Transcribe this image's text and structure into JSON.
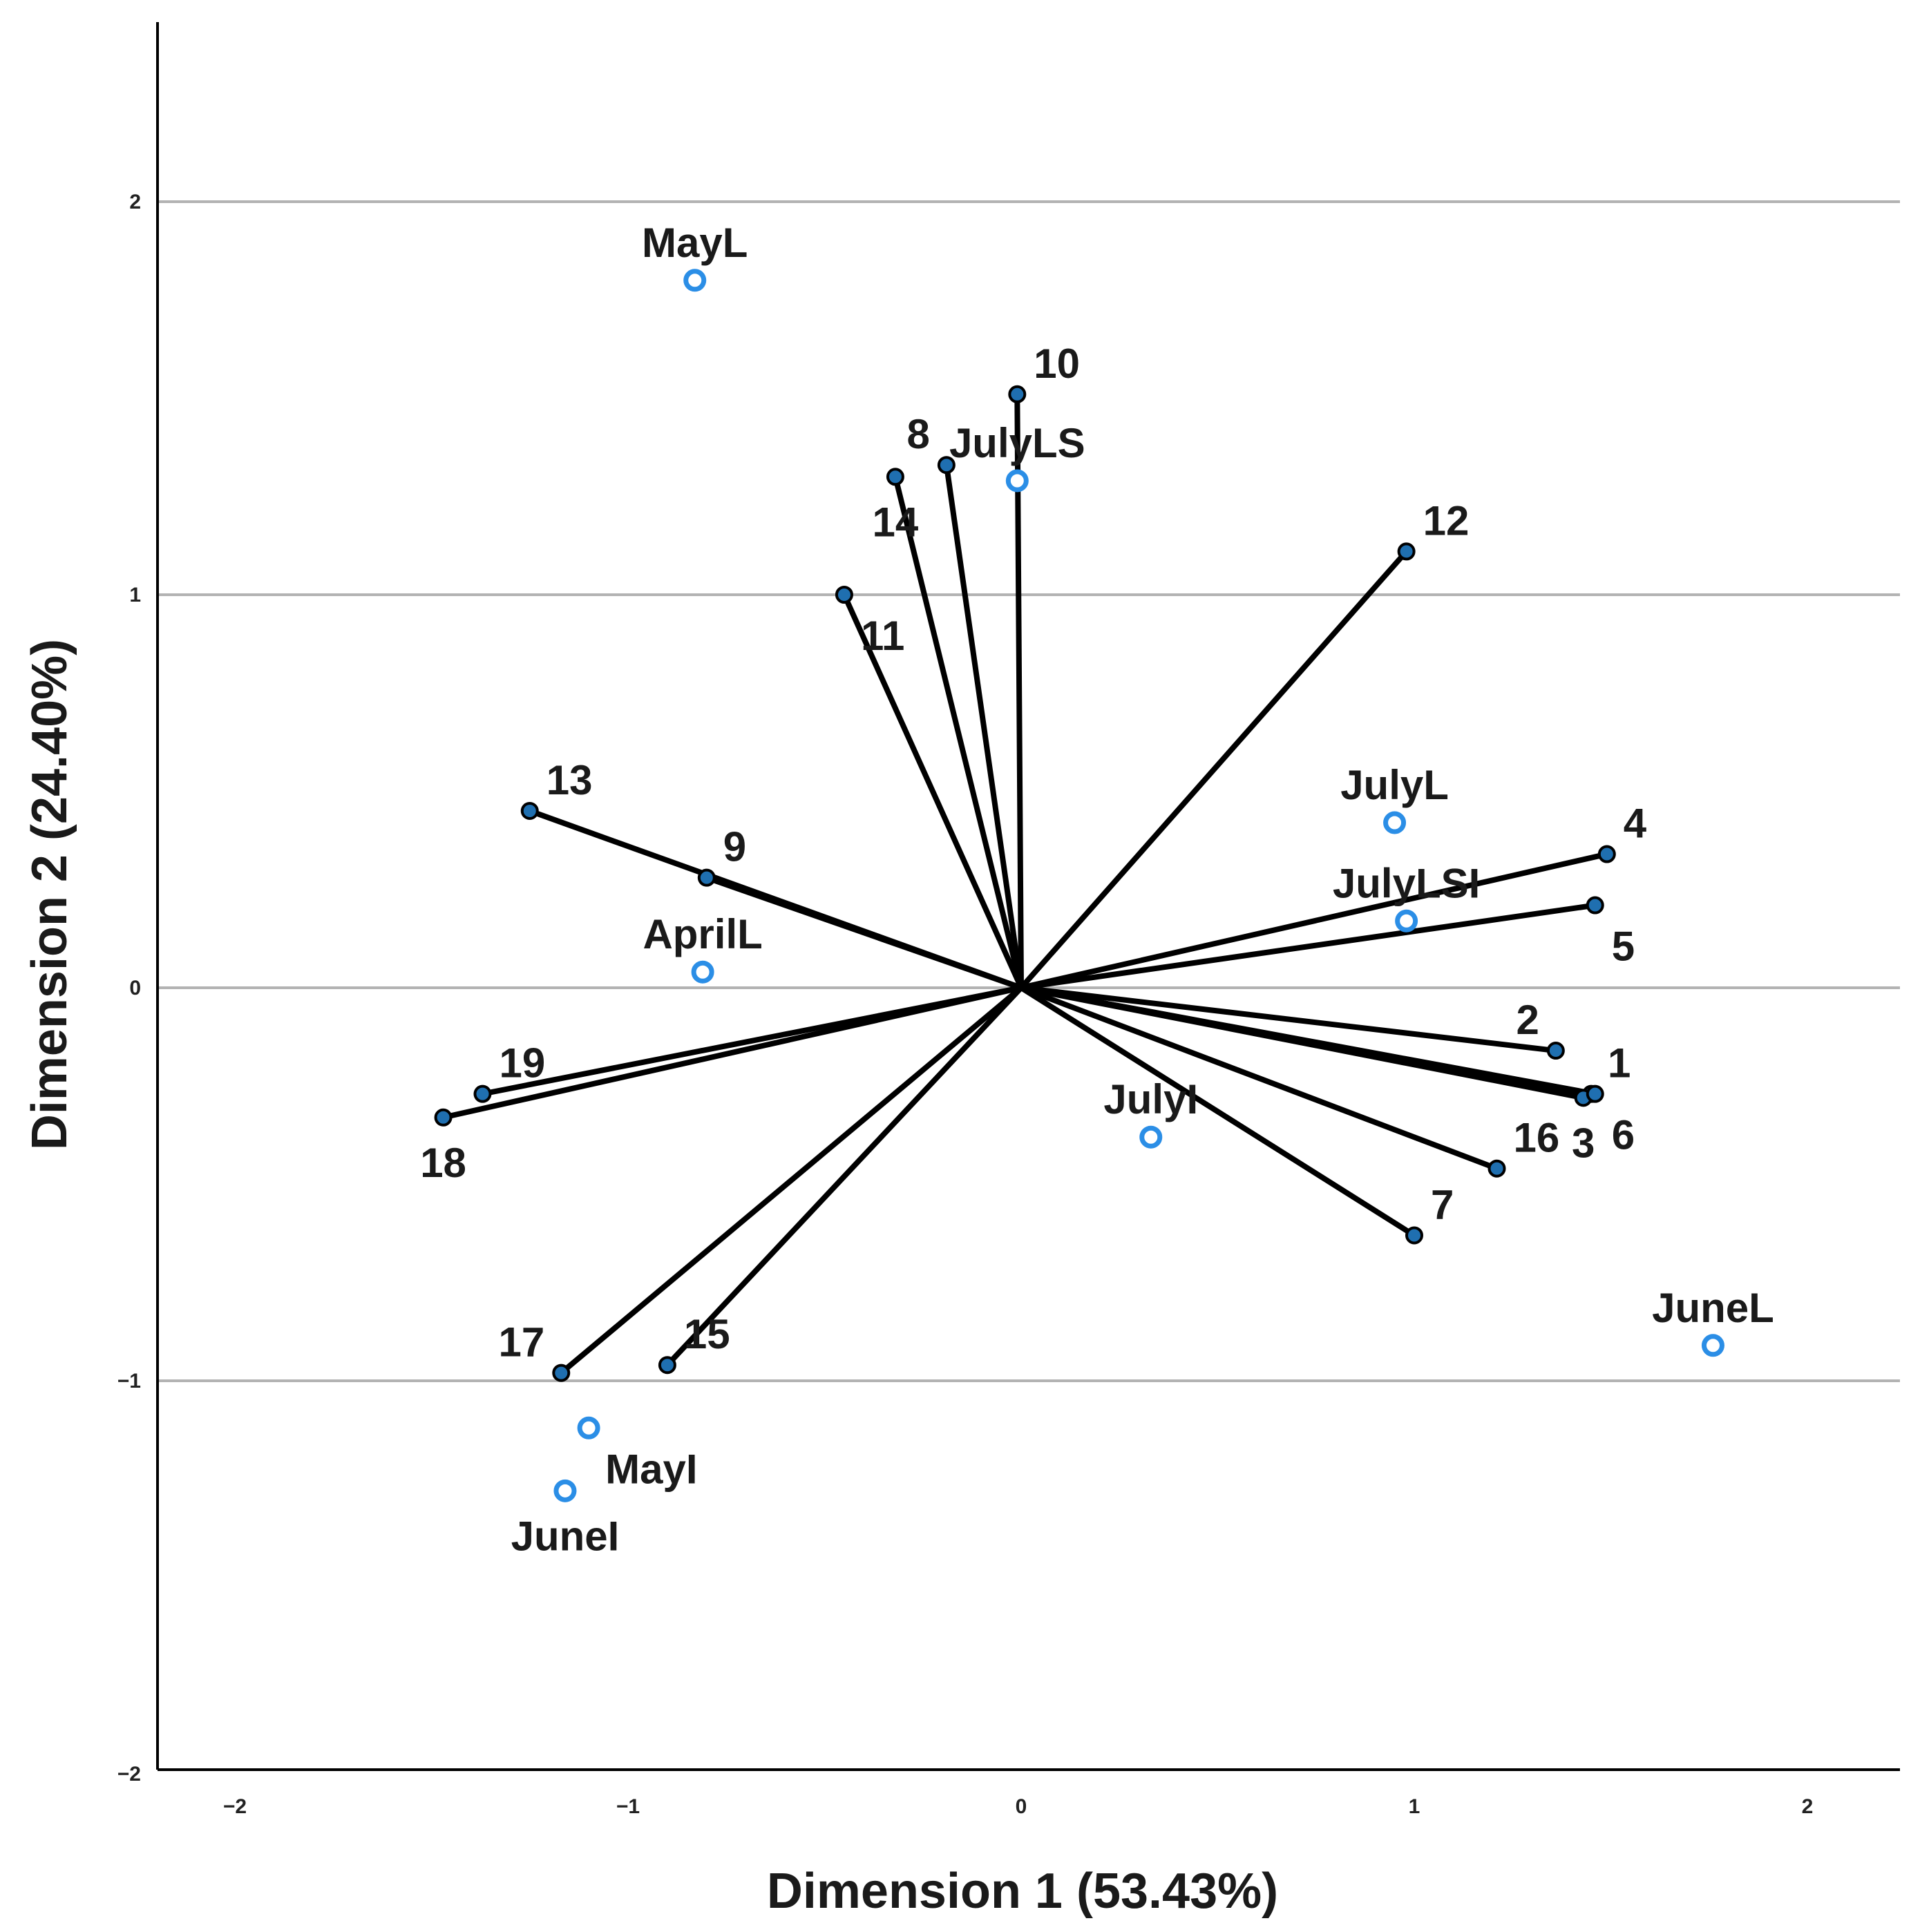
{
  "chart_data": {
    "type": "scatter",
    "subtype": "biplot",
    "title": "",
    "xlabel": "Dimension 1 (53.43%)",
    "ylabel": "Dimension 2 (24.40%)",
    "xlim": [
      -2.2,
      2.2
    ],
    "ylim": [
      -2.0,
      2.45
    ],
    "x_ticks": [
      {
        "value": -2,
        "label": "−2"
      },
      {
        "value": -1,
        "label": "−1"
      },
      {
        "value": 0,
        "label": "0"
      },
      {
        "value": 1,
        "label": "1"
      },
      {
        "value": 2,
        "label": "2"
      }
    ],
    "y_ticks": [
      {
        "value": -2,
        "label": "−2"
      },
      {
        "value": -1,
        "label": "−1"
      },
      {
        "value": 0,
        "label": "0"
      },
      {
        "value": 1,
        "label": "1"
      },
      {
        "value": 2,
        "label": "2"
      }
    ],
    "gridlines_y": [
      -1,
      0,
      1,
      2
    ],
    "colors": {
      "vector": "#000000",
      "vector_point": "#1f6fb0",
      "object_point": "#2b8ee6",
      "grid": "#b3b3b3"
    },
    "vectors": [
      {
        "label": "1",
        "x": 1.45,
        "y": -0.27,
        "label_pos": "above-right"
      },
      {
        "label": "2",
        "x": 1.36,
        "y": -0.16,
        "label_pos": "above-left"
      },
      {
        "label": "3",
        "x": 1.43,
        "y": -0.28,
        "label_pos": "below"
      },
      {
        "label": "4",
        "x": 1.49,
        "y": 0.34,
        "label_pos": "above-right"
      },
      {
        "label": "5",
        "x": 1.46,
        "y": 0.21,
        "label_pos": "below-right"
      },
      {
        "label": "6",
        "x": 1.46,
        "y": -0.27,
        "label_pos": "below-right"
      },
      {
        "label": "7",
        "x": 1.0,
        "y": -0.63,
        "label_pos": "above-right"
      },
      {
        "label": "8",
        "x": -0.19,
        "y": 1.33,
        "label_pos": "above-left"
      },
      {
        "label": "9",
        "x": -0.8,
        "y": 0.28,
        "label_pos": "above-right"
      },
      {
        "label": "10",
        "x": -0.01,
        "y": 1.51,
        "label_pos": "above-right"
      },
      {
        "label": "11",
        "x": -0.45,
        "y": 1.0,
        "label_pos": "below-right"
      },
      {
        "label": "12",
        "x": 0.98,
        "y": 1.11,
        "label_pos": "above-right"
      },
      {
        "label": "13",
        "x": -1.25,
        "y": 0.45,
        "label_pos": "above-right"
      },
      {
        "label": "14",
        "x": -0.32,
        "y": 1.3,
        "label_pos": "below"
      },
      {
        "label": "15",
        "x": -0.9,
        "y": -0.96,
        "label_pos": "above-right"
      },
      {
        "label": "16",
        "x": 1.21,
        "y": -0.46,
        "label_pos": "above-right"
      },
      {
        "label": "17",
        "x": -1.17,
        "y": -0.98,
        "label_pos": "above-left"
      },
      {
        "label": "18",
        "x": -1.47,
        "y": -0.33,
        "label_pos": "below"
      },
      {
        "label": "19",
        "x": -1.37,
        "y": -0.27,
        "label_pos": "above-right"
      }
    ],
    "points": [
      {
        "label": "MayL",
        "x": -0.83,
        "y": 1.8,
        "label_pos": "above"
      },
      {
        "label": "JulyLS",
        "x": -0.01,
        "y": 1.29,
        "label_pos": "above"
      },
      {
        "label": "JulyL",
        "x": 0.95,
        "y": 0.42,
        "label_pos": "above"
      },
      {
        "label": "JulyLSI",
        "x": 0.98,
        "y": 0.17,
        "label_pos": "above"
      },
      {
        "label": "AprilL",
        "x": -0.81,
        "y": 0.04,
        "label_pos": "above"
      },
      {
        "label": "JulyI",
        "x": 0.33,
        "y": -0.38,
        "label_pos": "above"
      },
      {
        "label": "JuneL",
        "x": 1.76,
        "y": -0.91,
        "label_pos": "above"
      },
      {
        "label": "MayI",
        "x": -1.1,
        "y": -1.12,
        "label_pos": "below-right"
      },
      {
        "label": "JuneI",
        "x": -1.16,
        "y": -1.28,
        "label_pos": "below"
      }
    ]
  }
}
